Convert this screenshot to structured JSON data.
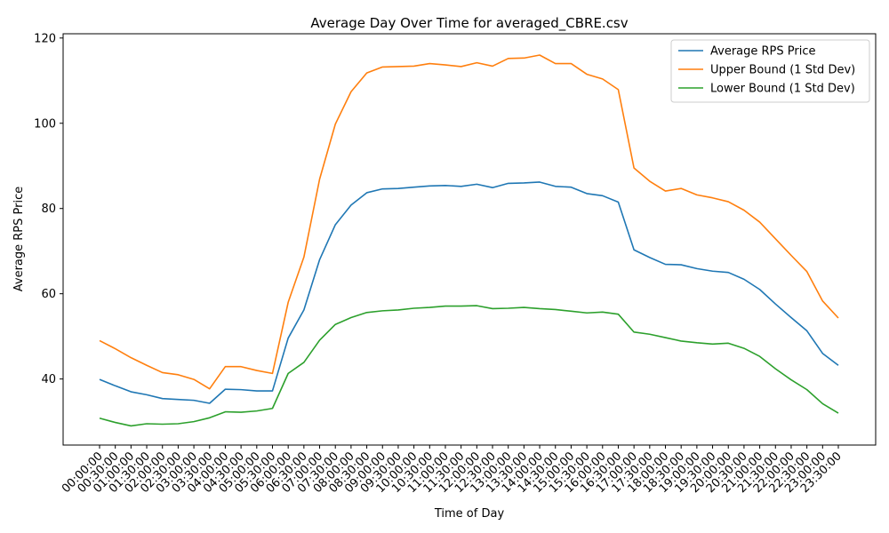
{
  "chart_data": {
    "type": "line",
    "title": "Average Day Over Time for averaged_CBRE.csv",
    "xlabel": "Time of Day",
    "ylabel": "Average RPS Price",
    "ylim": [
      24.5,
      121
    ],
    "yticks": [
      40,
      60,
      80,
      100,
      120
    ],
    "legend_position": "top-right",
    "grid": false,
    "categories": [
      "00:00:00",
      "00:30:00",
      "01:00:00",
      "01:30:00",
      "02:00:00",
      "02:30:00",
      "03:00:00",
      "03:30:00",
      "04:00:00",
      "04:30:00",
      "05:00:00",
      "05:30:00",
      "06:00:00",
      "06:30:00",
      "07:00:00",
      "07:30:00",
      "08:00:00",
      "08:30:00",
      "09:00:00",
      "09:30:00",
      "10:00:00",
      "10:30:00",
      "11:00:00",
      "11:30:00",
      "12:00:00",
      "12:30:00",
      "13:00:00",
      "13:30:00",
      "14:00:00",
      "14:30:00",
      "15:00:00",
      "15:30:00",
      "16:00:00",
      "16:30:00",
      "17:00:00",
      "17:30:00",
      "18:00:00",
      "18:30:00",
      "19:00:00",
      "19:30:00",
      "20:00:00",
      "20:30:00",
      "21:00:00",
      "21:30:00",
      "22:00:00",
      "22:30:00",
      "23:00:00",
      "23:30:00"
    ],
    "series": [
      {
        "name": "Average RPS Price",
        "color": "#1f77b4",
        "values": [
          39.9,
          38.4,
          37.0,
          36.3,
          35.4,
          35.2,
          35.0,
          34.3,
          37.6,
          37.5,
          37.2,
          37.2,
          49.6,
          56.2,
          68.0,
          76.2,
          80.8,
          83.7,
          84.6,
          84.7,
          85.0,
          85.3,
          85.4,
          85.2,
          85.7,
          84.9,
          85.9,
          86.0,
          86.2,
          85.2,
          85.0,
          83.5,
          83.0,
          81.5,
          70.3,
          68.5,
          66.9,
          66.8,
          65.9,
          65.3,
          65.0,
          63.4,
          61.0,
          57.6,
          54.4,
          51.3,
          46.0,
          43.2
        ]
      },
      {
        "name": "Upper Bound (1 Std Dev)",
        "color": "#ff7f0e",
        "values": [
          49.0,
          47.1,
          45.0,
          43.2,
          41.5,
          41.0,
          39.9,
          37.7,
          42.9,
          42.9,
          42.0,
          41.3,
          58.0,
          68.6,
          86.9,
          99.8,
          107.4,
          111.8,
          113.2,
          113.3,
          113.4,
          114.0,
          113.7,
          113.3,
          114.2,
          113.4,
          115.2,
          115.3,
          116.0,
          114.0,
          114.0,
          111.5,
          110.4,
          107.9,
          89.5,
          86.4,
          84.1,
          84.7,
          83.2,
          82.5,
          81.6,
          79.6,
          76.8,
          72.9,
          69.0,
          65.2,
          58.3,
          54.3
        ]
      },
      {
        "name": "Lower Bound (1 Std Dev)",
        "color": "#2ca02c",
        "values": [
          30.8,
          29.8,
          29.0,
          29.5,
          29.4,
          29.5,
          30.0,
          30.9,
          32.3,
          32.2,
          32.5,
          33.1,
          41.3,
          43.9,
          49.1,
          52.8,
          54.4,
          55.6,
          56.0,
          56.2,
          56.6,
          56.8,
          57.1,
          57.1,
          57.2,
          56.5,
          56.6,
          56.8,
          56.5,
          56.3,
          55.9,
          55.5,
          55.7,
          55.2,
          51.0,
          50.5,
          49.7,
          48.9,
          48.5,
          48.2,
          48.4,
          47.2,
          45.3,
          42.4,
          39.8,
          37.5,
          34.2,
          32.0
        ]
      }
    ]
  }
}
